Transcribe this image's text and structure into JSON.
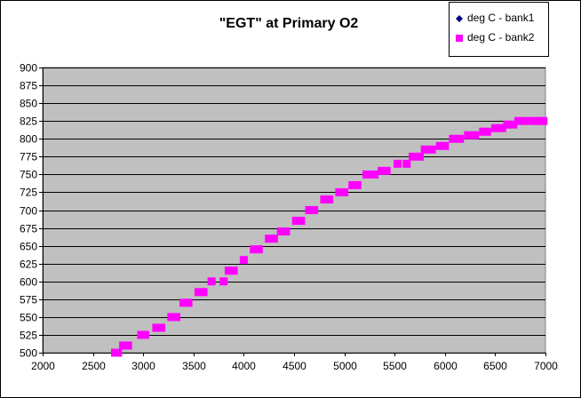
{
  "chart_data": {
    "type": "scatter",
    "title": "\"EGT\" at Primary O2",
    "xlim": [
      2000,
      7000
    ],
    "ylim": [
      500,
      900
    ],
    "x_ticks": [
      "2000",
      "2500",
      "3000",
      "3500",
      "4000",
      "4500",
      "5000",
      "5500",
      "6000",
      "6500",
      "7000"
    ],
    "y_ticks": [
      "500",
      "525",
      "550",
      "575",
      "600",
      "625",
      "650",
      "675",
      "700",
      "725",
      "750",
      "775",
      "800",
      "825",
      "850",
      "875",
      "900"
    ],
    "grid": true,
    "legend_position": "top-right",
    "plot_background": "#c0c0c0",
    "series": [
      {
        "name": "deg C - bank1",
        "color": "#000080",
        "marker": "diamond",
        "points": []
      },
      {
        "name": "deg C - bank2",
        "color": "#ff00ff",
        "marker": "square",
        "points": [
          [
            2720,
            500
          ],
          [
            2750,
            500
          ],
          [
            2800,
            510
          ],
          [
            2850,
            510
          ],
          [
            2980,
            525
          ],
          [
            3020,
            525
          ],
          [
            3130,
            535
          ],
          [
            3180,
            535
          ],
          [
            3280,
            550
          ],
          [
            3330,
            550
          ],
          [
            3400,
            570
          ],
          [
            3450,
            570
          ],
          [
            3550,
            585
          ],
          [
            3600,
            585
          ],
          [
            3680,
            600
          ],
          [
            3800,
            600
          ],
          [
            3850,
            615
          ],
          [
            3900,
            615
          ],
          [
            4000,
            630
          ],
          [
            4100,
            645
          ],
          [
            4150,
            645
          ],
          [
            4250,
            660
          ],
          [
            4300,
            660
          ],
          [
            4370,
            670
          ],
          [
            4420,
            670
          ],
          [
            4520,
            685
          ],
          [
            4570,
            685
          ],
          [
            4650,
            700
          ],
          [
            4700,
            700
          ],
          [
            4800,
            715
          ],
          [
            4850,
            715
          ],
          [
            4950,
            725
          ],
          [
            5000,
            725
          ],
          [
            5080,
            735
          ],
          [
            5130,
            735
          ],
          [
            5220,
            750
          ],
          [
            5300,
            750
          ],
          [
            5370,
            755
          ],
          [
            5420,
            755
          ],
          [
            5530,
            765
          ],
          [
            5620,
            765
          ],
          [
            5680,
            775
          ],
          [
            5750,
            775
          ],
          [
            5800,
            785
          ],
          [
            5870,
            785
          ],
          [
            5950,
            790
          ],
          [
            6000,
            790
          ],
          [
            6080,
            800
          ],
          [
            6150,
            800
          ],
          [
            6230,
            805
          ],
          [
            6300,
            805
          ],
          [
            6380,
            810
          ],
          [
            6420,
            810
          ],
          [
            6500,
            815
          ],
          [
            6570,
            815
          ],
          [
            6620,
            820
          ],
          [
            6680,
            820
          ],
          [
            6730,
            825
          ],
          [
            6800,
            825
          ],
          [
            6880,
            825
          ],
          [
            6950,
            825
          ],
          [
            6980,
            825
          ]
        ]
      }
    ]
  }
}
